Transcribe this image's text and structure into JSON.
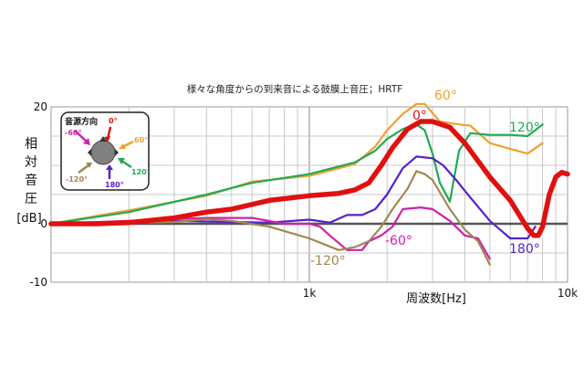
{
  "chart_data": {
    "type": "line",
    "title": "様々な角度からの到来音による鼓膜上音圧；HRTF",
    "xlabel": "周波数[Hz]",
    "ylabel_chars": [
      "相",
      "対",
      "音",
      "圧"
    ],
    "ylabel_unit": "[dB]",
    "x_scale": "log",
    "xlim": [
      100,
      10000
    ],
    "ylim": [
      -10,
      20
    ],
    "grid": true,
    "x_ticks": [
      {
        "value": 1000,
        "label": "1k"
      },
      {
        "value": 10000,
        "label": "10k"
      }
    ],
    "y_ticks": [
      {
        "value": 20,
        "label": "20"
      },
      {
        "value": 0,
        "label": "0"
      },
      {
        "value": -10,
        "label": "-10"
      }
    ],
    "series": [
      {
        "name": "60°",
        "color": "#f0a030",
        "x": [
          100,
          200,
          400,
          600,
          1000,
          1500,
          1800,
          2000,
          2300,
          2600,
          2800,
          3200,
          3800,
          4200,
          5000,
          6000,
          7000,
          8000
        ],
        "y": [
          0,
          2.3,
          4.8,
          7.2,
          8.2,
          10.2,
          13.2,
          16,
          18.8,
          20.5,
          20.5,
          17.5,
          17,
          16.8,
          13.8,
          12.8,
          12,
          13.8
        ]
      },
      {
        "name": "120°",
        "color": "#22aa55",
        "x": [
          100,
          200,
          400,
          600,
          1000,
          1500,
          1800,
          2000,
          2300,
          2600,
          2800,
          3000,
          3200,
          3500,
          3800,
          4200,
          5000,
          6000,
          7000,
          8000
        ],
        "y": [
          0,
          2,
          5,
          7,
          8.5,
          10.5,
          12.5,
          14.5,
          16.2,
          17,
          16,
          12,
          7,
          3.8,
          12.5,
          15.5,
          15.2,
          15.2,
          15,
          17
        ]
      },
      {
        "name": "0°",
        "color": "#e01010",
        "x": [
          100,
          150,
          200,
          300,
          400,
          500,
          700,
          1000,
          1300,
          1500,
          1700,
          1900,
          2100,
          2400,
          2700,
          3000,
          3500,
          4000,
          5000,
          6000,
          6500,
          7000,
          7400,
          7700,
          8000,
          8500,
          9000,
          9500,
          10000
        ],
        "y": [
          0,
          0,
          0.2,
          1,
          2,
          2.5,
          4,
          4.8,
          5.2,
          5.8,
          7,
          10,
          13,
          16.2,
          17.5,
          17.5,
          16.5,
          13.8,
          8,
          4,
          1.5,
          -0.8,
          -2,
          -2,
          -0.5,
          5,
          8,
          8.8,
          8.5
        ]
      },
      {
        "name": "180°",
        "color": "#5522cc",
        "x": [
          100,
          200,
          300,
          500,
          700,
          1000,
          1200,
          1400,
          1600,
          1800,
          2000,
          2300,
          2600,
          3000,
          3300,
          3700,
          4200,
          5000,
          6000,
          7000,
          7500
        ],
        "y": [
          0,
          0.3,
          0.5,
          0.3,
          0.2,
          0.7,
          0.2,
          1.5,
          1.5,
          2.5,
          5,
          9.5,
          11.5,
          11.2,
          10,
          7.5,
          4.5,
          0.5,
          -2.5,
          -2.5,
          -0.5
        ]
      },
      {
        "name": "-60°",
        "color": "#cc22aa",
        "x": [
          100,
          200,
          400,
          600,
          800,
          1000,
          1100,
          1200,
          1400,
          1600,
          1700,
          1900,
          2100,
          2300,
          2700,
          3000,
          3500,
          4000,
          4500,
          5000
        ],
        "y": [
          0,
          0.5,
          1,
          1,
          0,
          0,
          -0.5,
          -2,
          -4.5,
          -4.5,
          -3,
          -2,
          -0.5,
          2.5,
          2.8,
          2.5,
          0.5,
          -2,
          -2.5,
          -6
        ]
      },
      {
        "name": "-120°",
        "color": "#a08850",
        "x": [
          100,
          200,
          300,
          400,
          500,
          700,
          1000,
          1300,
          1500,
          1700,
          1900,
          2100,
          2400,
          2600,
          2800,
          3000,
          3500,
          4000,
          4500,
          5000
        ],
        "y": [
          0,
          0.2,
          0.3,
          0.8,
          0.5,
          -0.5,
          -2.5,
          -4.5,
          -4,
          -3,
          -0.5,
          2.5,
          6,
          9,
          8.5,
          7.5,
          2.5,
          -1,
          -3,
          -7
        ]
      }
    ],
    "legend_box": {
      "title": "音源方向",
      "labels": [
        {
          "text": "0°",
          "color": "#e01010"
        },
        {
          "text": "60°",
          "color": "#f0a030"
        },
        {
          "text": "120°",
          "color": "#22aa55"
        },
        {
          "text": "180°",
          "color": "#5522cc"
        },
        {
          "text": "-120°",
          "color": "#a08850"
        },
        {
          "text": "-60°",
          "color": "#cc22aa"
        }
      ]
    },
    "annotations": [
      {
        "text": "60°",
        "color": "#f0a030"
      },
      {
        "text": "0°",
        "color": "#e01010"
      },
      {
        "text": "120°",
        "color": "#22aa55"
      },
      {
        "text": "180°",
        "color": "#5522cc"
      },
      {
        "text": "-60°",
        "color": "#cc22aa"
      },
      {
        "text": "-120°",
        "color": "#a08850"
      }
    ]
  }
}
